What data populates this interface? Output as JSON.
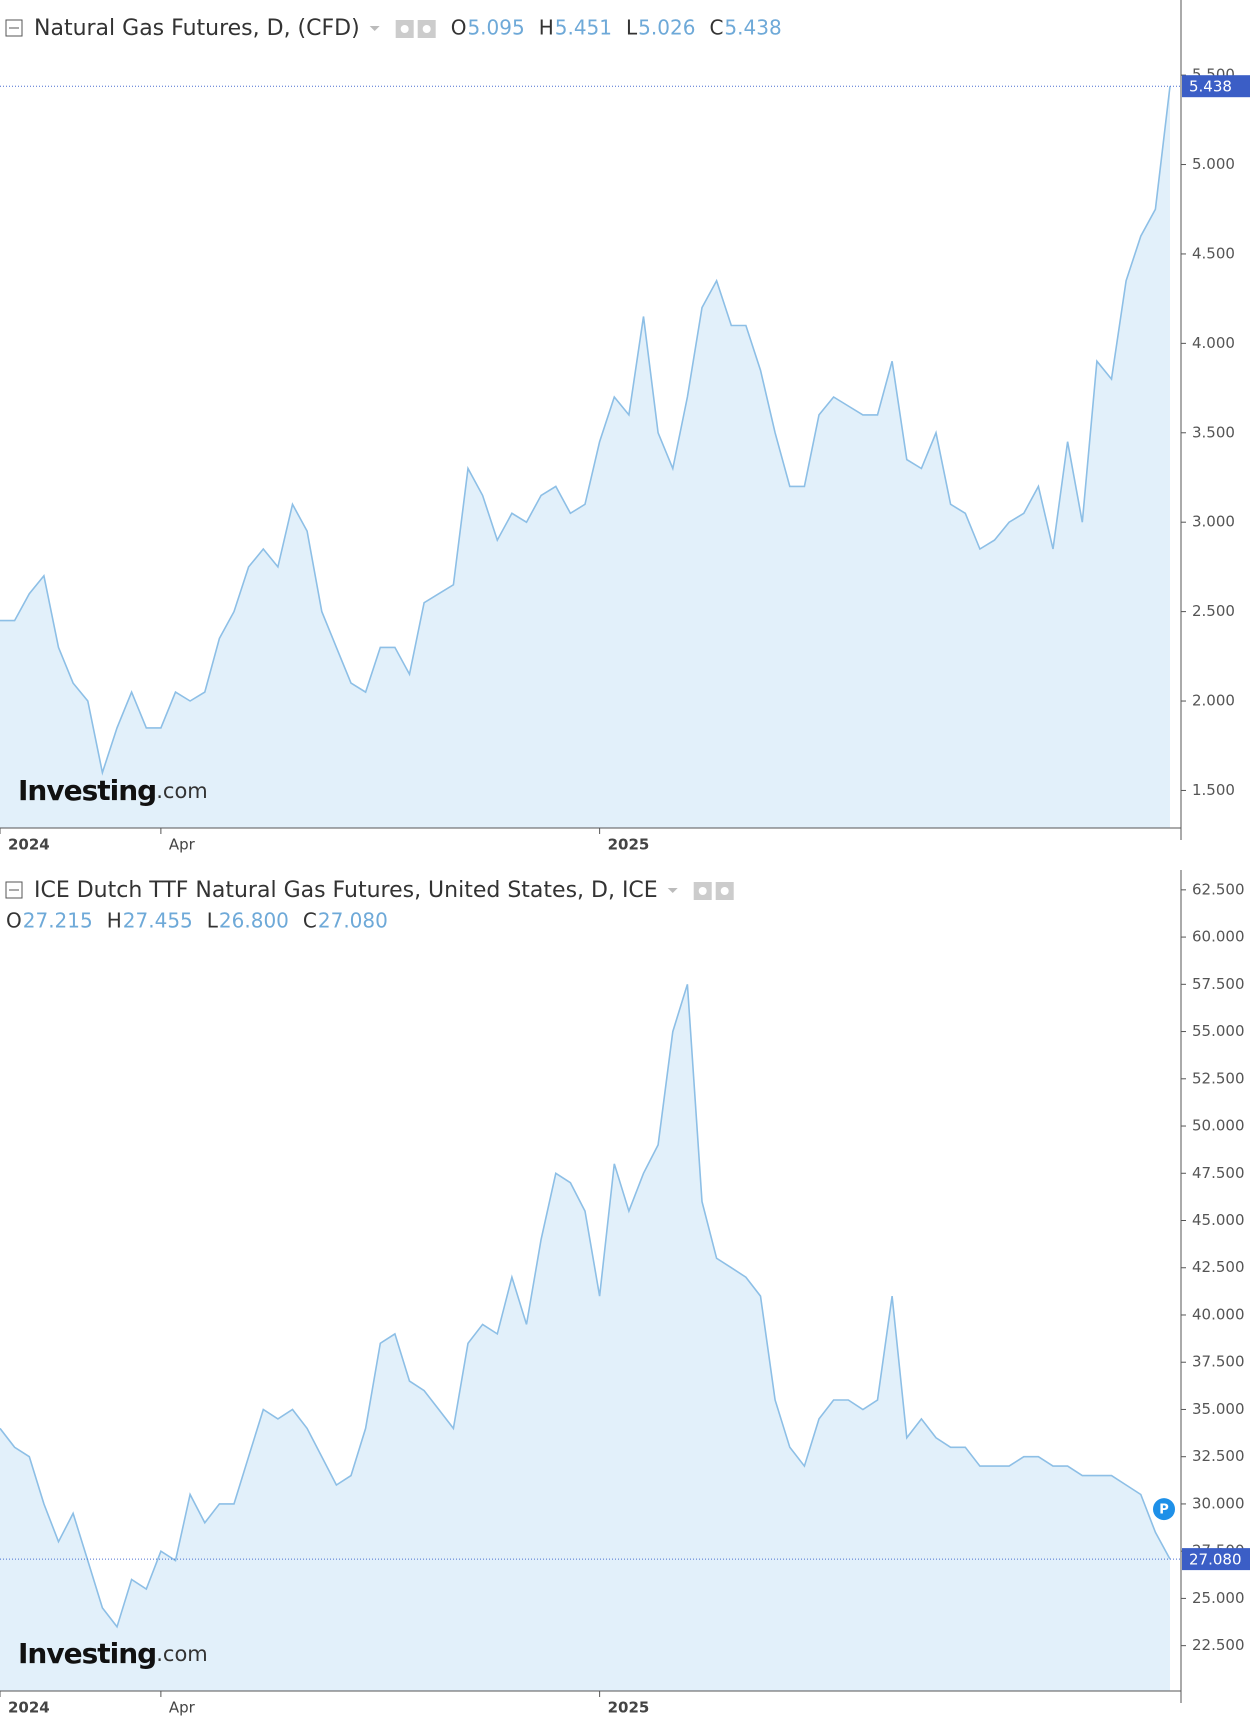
{
  "chart_data": [
    {
      "type": "area",
      "title": "Natural Gas Futures, D, (CFD)",
      "ohlc": [
        {
          "name": "O",
          "value": 5.095
        },
        {
          "name": "H",
          "value": 5.451
        },
        {
          "name": "L",
          "value": 5.026
        },
        {
          "name": "C",
          "value": 5.438
        }
      ],
      "categories": [
        "2024",
        null,
        null,
        null,
        null,
        null,
        null,
        null,
        null,
        null,
        null,
        "Apr",
        null,
        null,
        null,
        null,
        null,
        null,
        null,
        null,
        null,
        null,
        null,
        null,
        null,
        null,
        null,
        null,
        null,
        null,
        null,
        null,
        null,
        null,
        null,
        null,
        null,
        null,
        null,
        null,
        null,
        "2025",
        null,
        null,
        null,
        null,
        null,
        null,
        null,
        null,
        null,
        null,
        null,
        null,
        null,
        null,
        null,
        null,
        null,
        null,
        null,
        null,
        null,
        null,
        null,
        null,
        null,
        null,
        null,
        null,
        null,
        null,
        null,
        null,
        null,
        null,
        null,
        null,
        null,
        null,
        null
      ],
      "values": [
        2.45,
        2.45,
        2.6,
        2.7,
        2.3,
        2.1,
        2.0,
        1.6,
        1.85,
        2.05,
        1.85,
        1.85,
        2.05,
        2.0,
        2.05,
        2.35,
        2.5,
        2.75,
        2.85,
        2.75,
        3.1,
        2.95,
        2.5,
        2.3,
        2.1,
        2.05,
        2.3,
        2.3,
        2.15,
        2.55,
        2.6,
        2.65,
        3.3,
        3.15,
        2.9,
        3.05,
        3.0,
        3.15,
        3.2,
        3.05,
        3.1,
        3.45,
        3.7,
        3.6,
        4.15,
        3.5,
        3.3,
        3.7,
        4.2,
        4.35,
        4.1,
        4.1,
        3.85,
        3.5,
        3.2,
        3.2,
        3.6,
        3.7,
        3.65,
        3.6,
        3.6,
        3.9,
        3.35,
        3.3,
        3.5,
        3.1,
        3.05,
        2.85,
        2.9,
        3.0,
        3.05,
        3.2,
        2.85,
        3.45,
        3.0,
        3.9,
        3.8,
        4.35,
        4.6,
        4.75,
        5.438
      ],
      "color": "#8dbfe6",
      "fill_color": "#e2f0fa",
      "ylim": [
        1.29,
        5.92
      ],
      "yticks": [
        {
          "value": 1.5,
          "label": "1.500"
        },
        {
          "value": 2,
          "label": "2.000"
        },
        {
          "value": 2.5,
          "label": "2.500"
        },
        {
          "value": 3,
          "label": "3.000"
        },
        {
          "value": 3.5,
          "label": "3.500"
        },
        {
          "value": 4,
          "label": "4.000"
        },
        {
          "value": 4.5,
          "label": "4.500"
        },
        {
          "value": 5,
          "label": "5.000"
        },
        {
          "value": 5.5,
          "label": "5.500"
        }
      ],
      "last_value": 5.438,
      "watermark": [
        "Investing",
        ".com"
      ]
    },
    {
      "type": "area",
      "title": "ICE Dutch TTF Natural Gas Futures, United States, D, ICE",
      "ohlc": [
        {
          "name": "O",
          "value": 27.215
        },
        {
          "name": "H",
          "value": 27.455
        },
        {
          "name": "L",
          "value": {
            "value": 26.8,
            "label": "26.800"
          }
        },
        {
          "name": "C",
          "value": {
            "value": 27.08,
            "label": "27.080"
          }
        }
      ],
      "categories": [
        "2024",
        null,
        null,
        null,
        null,
        null,
        null,
        null,
        null,
        null,
        null,
        "Apr",
        null,
        null,
        null,
        null,
        null,
        null,
        null,
        null,
        null,
        null,
        null,
        null,
        null,
        null,
        null,
        null,
        null,
        null,
        null,
        null,
        null,
        null,
        null,
        null,
        null,
        null,
        null,
        null,
        null,
        "2025",
        null,
        null,
        null,
        null,
        null,
        null,
        null,
        null,
        null,
        null,
        null,
        null,
        null,
        null,
        null,
        null,
        null,
        null,
        null,
        null,
        null,
        null,
        null,
        null,
        null,
        null,
        null,
        null,
        null,
        null,
        null,
        null,
        null,
        null,
        null,
        null,
        null,
        null,
        null
      ],
      "values": [
        34,
        33,
        32.5,
        30,
        28,
        29.5,
        27,
        24.5,
        23.5,
        26,
        25.5,
        27.5,
        27,
        30.5,
        29,
        30,
        30,
        32.5,
        35,
        34.5,
        35,
        34,
        32.5,
        31,
        31.5,
        34,
        38.5,
        39,
        36.5,
        36,
        35,
        34,
        38.5,
        39.5,
        39,
        42,
        39.5,
        44,
        47.5,
        47,
        45.5,
        41,
        48,
        45.5,
        47.5,
        49,
        55,
        57.5,
        46,
        43,
        42.5,
        42,
        41,
        35.5,
        33,
        32,
        34.5,
        35.5,
        35.5,
        35,
        35.5,
        41,
        33.5,
        34.5,
        33.5,
        33,
        33,
        32,
        32,
        32,
        32.5,
        32.5,
        32,
        32,
        31.5,
        31.5,
        31.5,
        31,
        30.5,
        28.5,
        27.08
      ],
      "color": "#8dbfe6",
      "fill_color": "#e2f0fa",
      "ylim": [
        20.1,
        63.55
      ],
      "yticks": [
        {
          "value": 22.5,
          "label": "22.500"
        },
        {
          "value": 25,
          "label": "25.000"
        },
        {
          "value": 27.5,
          "label": "27.500"
        },
        {
          "value": 30,
          "label": "30.000"
        },
        {
          "value": 32.5,
          "label": "32.500"
        },
        {
          "value": 35,
          "label": "35.000"
        },
        {
          "value": 37.5,
          "label": "37.500"
        },
        {
          "value": 40,
          "label": "40.000"
        },
        {
          "value": 42.5,
          "label": "42.500"
        },
        {
          "value": 45,
          "label": "45.000"
        },
        {
          "value": 47.5,
          "label": "47.500"
        },
        {
          "value": 50,
          "label": "50.000"
        },
        {
          "value": 52.5,
          "label": "52.500"
        },
        {
          "value": 55,
          "label": "55.000"
        },
        {
          "value": 57.5,
          "label": "57.500"
        },
        {
          "value": 60,
          "label": "60.000"
        },
        {
          "value": 62.5,
          "label": "62.500"
        }
      ],
      "last_value": {
        "value": 27.08,
        "label": "27.080"
      },
      "watermark": [
        "Investing",
        ".com"
      ],
      "marker": "P"
    }
  ]
}
